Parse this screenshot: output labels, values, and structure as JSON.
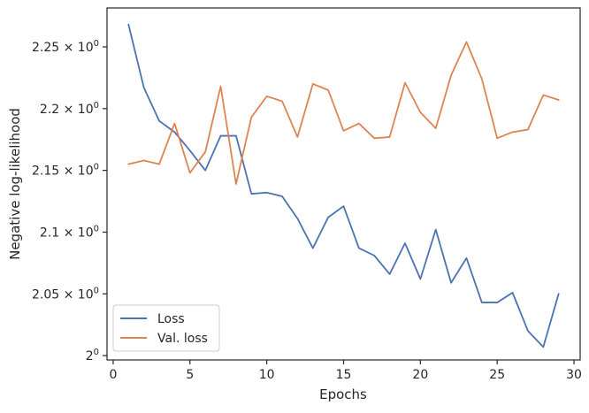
{
  "chart_data": {
    "type": "line",
    "xlabel": "Epochs",
    "ylabel": "Negative log-likelihood",
    "xlim": [
      -0.4,
      30.4
    ],
    "ylim": [
      1.9965,
      2.2815
    ],
    "x_ticks": [
      0,
      5,
      10,
      15,
      20,
      25,
      30
    ],
    "x_tick_labels": [
      "0",
      "5",
      "10",
      "15",
      "20",
      "25",
      "30"
    ],
    "y_ticks": [
      2.0,
      2.05,
      2.1,
      2.15,
      2.2,
      2.25
    ],
    "y_tick_labels": [
      {
        "mant": "2",
        "exp": "0"
      },
      {
        "mant": "2.05 × 10",
        "exp": "0"
      },
      {
        "mant": "2.1 × 10",
        "exp": "0"
      },
      {
        "mant": "2.15 × 10",
        "exp": "0"
      },
      {
        "mant": "2.2 × 10",
        "exp": "0"
      },
      {
        "mant": "2.25 × 10",
        "exp": "0"
      }
    ],
    "grid": false,
    "legend_position": "lower-left",
    "x": [
      1,
      2,
      3,
      4,
      5,
      6,
      7,
      8,
      9,
      10,
      11,
      12,
      13,
      14,
      15,
      16,
      17,
      18,
      19,
      20,
      21,
      22,
      23,
      24,
      25,
      26,
      27,
      28,
      29
    ],
    "series": [
      {
        "name": "Loss",
        "color": "#4c72b0",
        "values": [
          2.268,
          2.217,
          2.19,
          2.181,
          2.166,
          2.15,
          2.178,
          2.178,
          2.131,
          2.132,
          2.129,
          2.111,
          2.087,
          2.112,
          2.121,
          2.087,
          2.081,
          2.066,
          2.091,
          2.062,
          2.102,
          2.059,
          2.079,
          2.043,
          2.043,
          2.051,
          2.02,
          2.007,
          2.05
        ]
      },
      {
        "name": "Val. loss",
        "color": "#dd8452",
        "values": [
          2.155,
          2.158,
          2.155,
          2.188,
          2.148,
          2.165,
          2.218,
          2.139,
          2.193,
          2.21,
          2.206,
          2.177,
          2.22,
          2.215,
          2.182,
          2.188,
          2.176,
          2.177,
          2.221,
          2.197,
          2.184,
          2.227,
          2.254,
          2.224,
          2.176,
          2.181,
          2.183,
          2.211,
          2.207
        ]
      }
    ]
  }
}
